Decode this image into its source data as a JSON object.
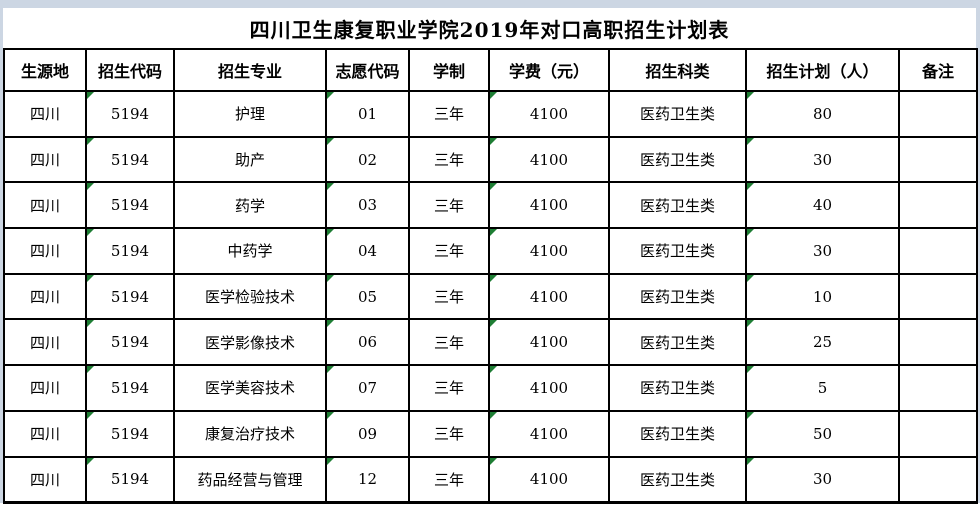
{
  "title": "四川卫生康复职业学院2019年对口高职招生计划表",
  "table": {
    "columns": [
      {
        "key": "origin",
        "label": "生源地"
      },
      {
        "key": "school_code",
        "label": "招生代码"
      },
      {
        "key": "major",
        "label": "招生专业"
      },
      {
        "key": "choice_code",
        "label": "志愿代码"
      },
      {
        "key": "duration",
        "label": "学制"
      },
      {
        "key": "tuition",
        "label": "学费（元）"
      },
      {
        "key": "category",
        "label": "招生科类"
      },
      {
        "key": "plan",
        "label": "招生计划（人）"
      },
      {
        "key": "note",
        "label": "备注"
      }
    ],
    "flagged_columns": [
      "school_code",
      "choice_code",
      "tuition",
      "plan"
    ],
    "rows": [
      {
        "origin": "四川",
        "school_code": "5194",
        "major": "护理",
        "choice_code": "01",
        "duration": "三年",
        "tuition": "4100",
        "category": "医药卫生类",
        "plan": "80",
        "note": ""
      },
      {
        "origin": "四川",
        "school_code": "5194",
        "major": "助产",
        "choice_code": "02",
        "duration": "三年",
        "tuition": "4100",
        "category": "医药卫生类",
        "plan": "30",
        "note": ""
      },
      {
        "origin": "四川",
        "school_code": "5194",
        "major": "药学",
        "choice_code": "03",
        "duration": "三年",
        "tuition": "4100",
        "category": "医药卫生类",
        "plan": "40",
        "note": ""
      },
      {
        "origin": "四川",
        "school_code": "5194",
        "major": "中药学",
        "choice_code": "04",
        "duration": "三年",
        "tuition": "4100",
        "category": "医药卫生类",
        "plan": "30",
        "note": ""
      },
      {
        "origin": "四川",
        "school_code": "5194",
        "major": "医学检验技术",
        "choice_code": "05",
        "duration": "三年",
        "tuition": "4100",
        "category": "医药卫生类",
        "plan": "10",
        "note": ""
      },
      {
        "origin": "四川",
        "school_code": "5194",
        "major": "医学影像技术",
        "choice_code": "06",
        "duration": "三年",
        "tuition": "4100",
        "category": "医药卫生类",
        "plan": "25",
        "note": ""
      },
      {
        "origin": "四川",
        "school_code": "5194",
        "major": "医学美容技术",
        "choice_code": "07",
        "duration": "三年",
        "tuition": "4100",
        "category": "医药卫生类",
        "plan": "5",
        "note": ""
      },
      {
        "origin": "四川",
        "school_code": "5194",
        "major": "康复治疗技术",
        "choice_code": "09",
        "duration": "三年",
        "tuition": "4100",
        "category": "医药卫生类",
        "plan": "50",
        "note": ""
      },
      {
        "origin": "四川",
        "school_code": "5194",
        "major": "药品经营与管理",
        "choice_code": "12",
        "duration": "三年",
        "tuition": "4100",
        "category": "医药卫生类",
        "plan": "30",
        "note": ""
      }
    ]
  },
  "colors": {
    "border": "#000000",
    "sheet_edge": "#ccd6e3",
    "error_indicator": "#1e7e34"
  }
}
